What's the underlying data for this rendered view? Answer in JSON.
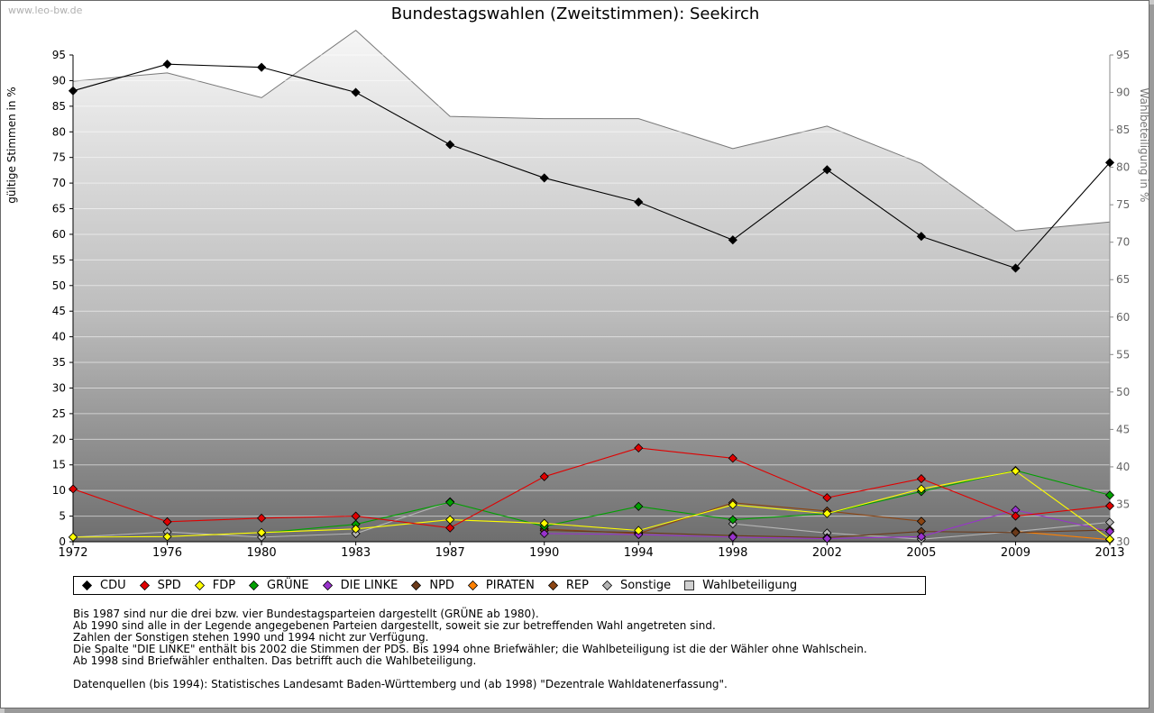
{
  "watermark": "www.leo-bw.de",
  "chart_data": {
    "type": "line",
    "title": "Bundestagswahlen (Zweitstimmen): Seekirch",
    "ylabel": "gültige Stimmen in %",
    "y2label": "Wahlbeteiligung in %",
    "xlabel": "",
    "x": [
      "1972",
      "1976",
      "1980",
      "1983",
      "1987",
      "1990",
      "1994",
      "1998",
      "2002",
      "2005",
      "2009",
      "2013"
    ],
    "ylim": [
      0,
      95
    ],
    "y_ticks": [
      0,
      5,
      10,
      15,
      20,
      25,
      30,
      35,
      40,
      45,
      50,
      55,
      60,
      65,
      70,
      75,
      80,
      85,
      90,
      95
    ],
    "y2lim": [
      30,
      95
    ],
    "y2_ticks": [
      30,
      35,
      40,
      45,
      50,
      55,
      60,
      65,
      70,
      75,
      80,
      85,
      90,
      95
    ],
    "grid": true,
    "legend_position": "bottom",
    "series": [
      {
        "name": "CDU",
        "color": "#000000",
        "values": [
          88.0,
          93.2,
          92.6,
          87.7,
          77.5,
          71.0,
          66.3,
          58.9,
          72.6,
          59.6,
          53.4,
          74.0
        ]
      },
      {
        "name": "SPD",
        "color": "#e00000",
        "values": [
          10.3,
          3.9,
          4.6,
          5.0,
          2.7,
          12.7,
          18.3,
          16.3,
          8.6,
          12.3,
          5.0,
          7.0
        ]
      },
      {
        "name": "FDP",
        "color": "#ffff00",
        "values": [
          0.9,
          1.0,
          1.8,
          2.5,
          4.3,
          3.6,
          2.2,
          7.2,
          5.5,
          10.3,
          13.8,
          0.5
        ]
      },
      {
        "name": "GRÜNE",
        "color": "#00a000",
        "values": [
          null,
          null,
          1.7,
          3.4,
          7.7,
          3.0,
          6.9,
          4.3,
          5.5,
          9.8,
          13.9,
          9.1
        ]
      },
      {
        "name": "DIE LINKE",
        "color": "#9932cc",
        "values": [
          null,
          null,
          null,
          null,
          null,
          1.6,
          1.4,
          0.9,
          0.6,
          1.0,
          6.2,
          2.0
        ]
      },
      {
        "name": "NPD",
        "color": "#6b3a1a",
        "values": [
          null,
          null,
          null,
          null,
          null,
          2.2,
          1.8,
          1.2,
          0.8,
          2.0,
          1.8,
          2.3
        ]
      },
      {
        "name": "PIRATEN",
        "color": "#ff8000",
        "values": [
          null,
          null,
          null,
          null,
          null,
          null,
          null,
          null,
          null,
          null,
          2.0,
          0.4
        ]
      },
      {
        "name": "REP",
        "color": "#8b4513",
        "values": [
          null,
          null,
          null,
          null,
          null,
          2.5,
          1.6,
          7.6,
          6.0,
          4.0,
          null,
          null
        ]
      },
      {
        "name": "Sonstige",
        "color": "#b4b4b4",
        "values": [
          0.9,
          1.9,
          0.9,
          1.6,
          7.8,
          null,
          null,
          3.5,
          1.7,
          0.5,
          2.0,
          3.8
        ]
      }
    ],
    "turnout": {
      "name": "Wahlbeteiligung",
      "color": "#d0d0d0",
      "values": [
        91.5,
        92.6,
        89.3,
        98.3,
        86.8,
        86.5,
        86.5,
        82.5,
        85.5,
        80.5,
        71.5,
        72.7
      ]
    }
  },
  "notes": [
    "Bis 1987 sind nur die drei bzw. vier Bundestagsparteien dargestellt (GRÜNE ab 1980).",
    "Ab 1990 sind alle in der Legende angegebenen Parteien dargestellt, soweit sie zur betreffenden Wahl angetreten sind.",
    "Zahlen der Sonstigen stehen 1990 und 1994 nicht zur Verfügung.",
    "Die Spalte \"DIE LINKE\" enthält bis 2002 die Stimmen der PDS. Bis 1994 ohne Briefwähler; die Wahlbeteiligung ist die der Wähler ohne Wahlschein.",
    "Ab 1998 sind Briefwähler enthalten. Das betrifft auch die Wahlbeteiligung."
  ],
  "sources": "Datenquellen (bis 1994): Statistisches Landesamt Baden-Württemberg und (ab 1998) \"Dezentrale Wahldatenerfassung\"."
}
